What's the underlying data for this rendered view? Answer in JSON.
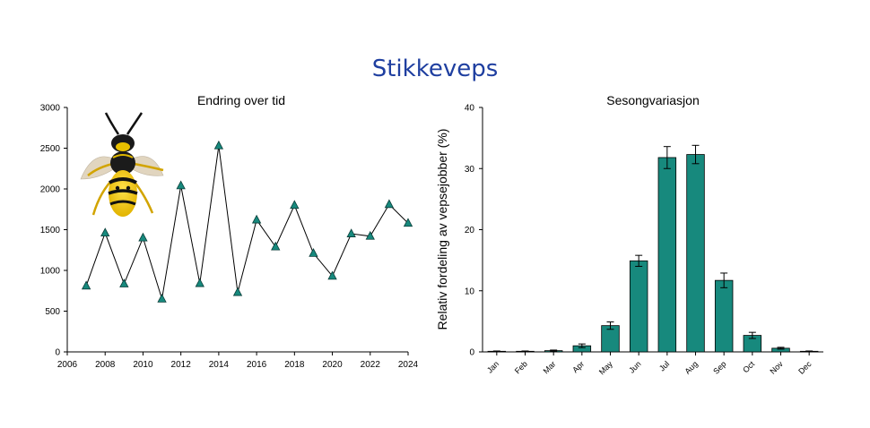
{
  "page": {
    "title": "Stikkeveps"
  },
  "chart_data": [
    {
      "type": "line",
      "title": "Endring over tid",
      "xlabel": "",
      "ylabel": "",
      "x": [
        2007,
        2008,
        2009,
        2010,
        2011,
        2012,
        2013,
        2014,
        2015,
        2016,
        2017,
        2018,
        2019,
        2020,
        2021,
        2022,
        2023,
        2024
      ],
      "y": [
        810,
        1460,
        835,
        1400,
        650,
        2040,
        840,
        2530,
        730,
        1620,
        1290,
        1800,
        1210,
        930,
        1450,
        1420,
        1810,
        1580
      ],
      "xlim": [
        2006,
        2024
      ],
      "ylim": [
        0,
        3000
      ],
      "xticks": [
        "2006",
        "2008",
        "2010",
        "2012",
        "2014",
        "2016",
        "2018",
        "2020",
        "2022",
        "2024"
      ],
      "yticks": [
        "0",
        "500",
        "1000",
        "1500",
        "2000",
        "2500",
        "3000"
      ],
      "marker": "triangle",
      "marker_color": "#17897d",
      "line_color": "#000000",
      "grid": false
    },
    {
      "type": "bar",
      "title": "Sesongvariasjon",
      "xlabel": "",
      "ylabel": "Relativ fordeling av vepsejobber (%)",
      "categories": [
        "Jan",
        "Feb",
        "Mar",
        "Apr",
        "May",
        "Jun",
        "Jul",
        "Aug",
        "Sep",
        "Oct",
        "Nov",
        "Dec"
      ],
      "values": [
        0.1,
        0.1,
        0.2,
        1.0,
        4.3,
        14.9,
        31.8,
        32.3,
        11.7,
        2.7,
        0.6,
        0.1
      ],
      "errors": [
        0.05,
        0.05,
        0.1,
        0.3,
        0.6,
        0.9,
        1.8,
        1.5,
        1.2,
        0.5,
        0.15,
        0.05
      ],
      "ylim": [
        0,
        40
      ],
      "yticks": [
        "0",
        "10",
        "20",
        "30",
        "40"
      ],
      "bar_color": "#17897d",
      "grid": false
    }
  ],
  "image": {
    "name": "wasp-photo"
  }
}
